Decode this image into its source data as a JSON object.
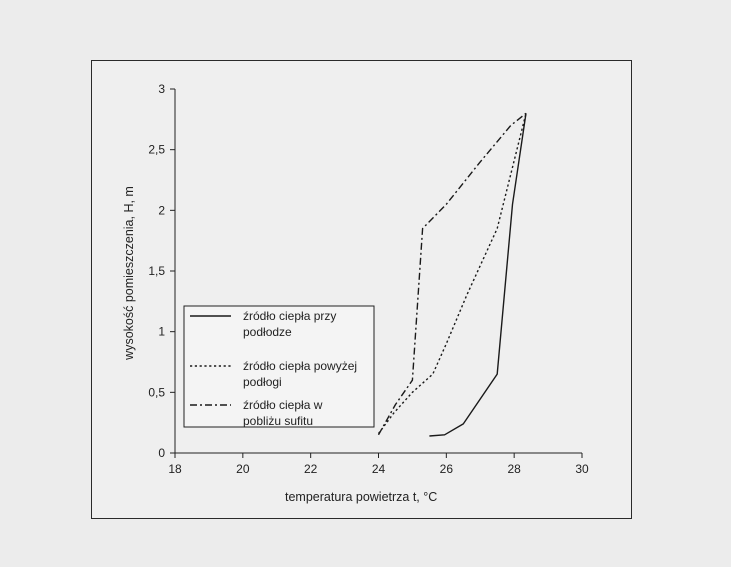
{
  "chart_data": {
    "type": "line",
    "xlabel": "temperatura powietrza t, °C",
    "ylabel": "wysokość pomieszczenia, H, m",
    "xlim": [
      18,
      30
    ],
    "ylim": [
      0,
      3
    ],
    "xticks": [
      18,
      20,
      22,
      24,
      26,
      28,
      30
    ],
    "yticks": [
      0,
      0.5,
      1,
      1.5,
      2,
      2.5,
      3
    ],
    "xtick_labels": [
      "18",
      "20",
      "22",
      "24",
      "26",
      "28",
      "30"
    ],
    "ytick_labels": [
      "0",
      "0,5",
      "1",
      "1,5",
      "2",
      "2,5",
      "3"
    ],
    "grid": false,
    "legend_position": "lower-left",
    "series": [
      {
        "name_lines": [
          "źródło ciepła przy",
          "podłodze"
        ],
        "style": "solid",
        "x": [
          25.5,
          25.95,
          26.5,
          27.5,
          27.95,
          28.35
        ],
        "y": [
          0.14,
          0.15,
          0.24,
          0.65,
          2.05,
          2.8
        ]
      },
      {
        "name_lines": [
          "źródło ciepła powyżej",
          "podłogi"
        ],
        "style": "dotted",
        "x": [
          24.0,
          24.45,
          25.0,
          25.6,
          26.0,
          26.6,
          27.5,
          28.35
        ],
        "y": [
          0.16,
          0.33,
          0.5,
          0.65,
          0.9,
          1.3,
          1.85,
          2.8
        ]
      },
      {
        "name_lines": [
          "źródło ciepła w",
          "pobliżu sufitu"
        ],
        "style": "dashdot",
        "x": [
          24.0,
          24.5,
          25.0,
          25.3,
          26.0,
          27.0,
          27.9,
          28.35
        ],
        "y": [
          0.15,
          0.4,
          0.6,
          1.85,
          2.05,
          2.4,
          2.7,
          2.8
        ]
      }
    ]
  }
}
